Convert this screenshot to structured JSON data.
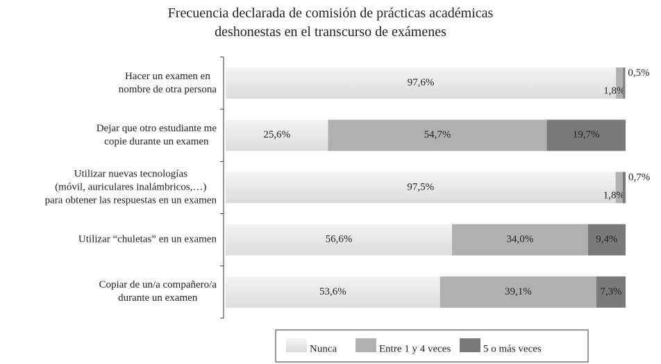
{
  "chart_data": {
    "type": "stacked_barh",
    "title": "Frecuencia declarada de comisión de prácticas académicas\ndeshonestas en el transcurso de exámenes",
    "categories": [
      "Hacer un examen en\nnombre de otra persona",
      "Dejar que otro estudiante me\ncopie durante un examen",
      "Utilizar nuevas tecnologías\n(móvil, auriculares inalámbricos,…)\npara obtener las respuestas en un examen",
      "Utilizar “chuletas” en un examen",
      "Copiar de un/a compañero/a\ndurante un examen"
    ],
    "xlim": [
      0,
      100
    ],
    "legend": "bottom",
    "series": [
      {
        "name": "Nunca",
        "color": "#e6e6e6",
        "values": [
          97.6,
          25.6,
          97.5,
          56.6,
          53.6
        ],
        "value_labels": [
          "97,6%",
          "25,6%",
          "97,5%",
          "56,6%",
          "53,6%"
        ]
      },
      {
        "name": "Entre 1 y 4 veces",
        "color": "#b0b0b0",
        "values": [
          1.8,
          54.7,
          1.8,
          34.0,
          39.1
        ],
        "value_labels": [
          "1,8%",
          "54,7%",
          "1,8%",
          "34,0%",
          "39,1%"
        ]
      },
      {
        "name": "5 o más veces",
        "color": "#7a7a7a",
        "values": [
          0.5,
          19.7,
          0.7,
          9.4,
          7.3
        ],
        "value_labels": [
          "0,5%",
          "19,7%",
          "0,7%",
          "9,4%",
          "7,3%"
        ]
      }
    ]
  }
}
